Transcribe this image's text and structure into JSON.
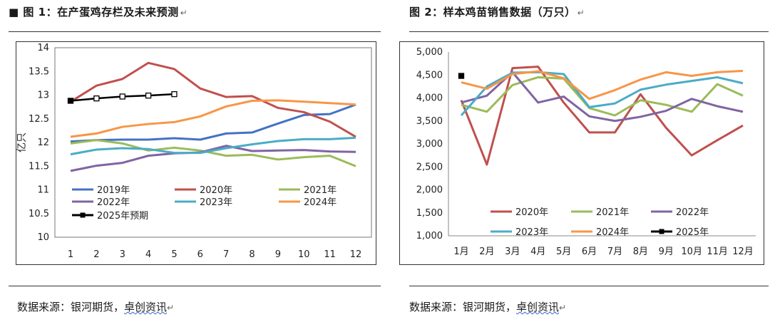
{
  "left_caption": {
    "bullet": "■",
    "text": "图 1：在产蛋鸡存栏及未来预测",
    "mark": "↵"
  },
  "right_caption": {
    "text": "图 2：样本鸡苗销售数据（万只）",
    "mark": "↵"
  },
  "left_source": {
    "prefix": "数据来源：银河期货，",
    "org": "卓创资讯",
    "mark": "↵"
  },
  "right_source": {
    "prefix": "数据来源：银河期货，",
    "org": "卓创资讯",
    "mark": "↵"
  },
  "chart_data": [
    {
      "type": "line",
      "title": "",
      "ylabel": "亿只",
      "xlabel": "",
      "ylim": [
        10,
        14
      ],
      "yticks": [
        10,
        10.5,
        11,
        11.5,
        12,
        12.5,
        13,
        13.5,
        14
      ],
      "categories": [
        "1",
        "2",
        "3",
        "4",
        "5",
        "6",
        "7",
        "8",
        "9",
        "10",
        "11",
        "12"
      ],
      "series": [
        {
          "name": "2019年",
          "color": "#4472c4",
          "values": [
            12.02,
            12.05,
            12.06,
            12.06,
            12.09,
            12.06,
            12.19,
            12.21,
            12.4,
            12.58,
            12.6,
            12.8
          ]
        },
        {
          "name": "2020年",
          "color": "#c0504d",
          "values": [
            12.86,
            13.2,
            13.34,
            13.68,
            13.55,
            13.14,
            12.96,
            12.98,
            12.73,
            12.64,
            12.44,
            12.12
          ]
        },
        {
          "name": "2021年",
          "color": "#9bbb59",
          "values": [
            11.98,
            12.05,
            11.98,
            11.83,
            11.89,
            11.83,
            11.72,
            11.74,
            11.64,
            11.69,
            11.72,
            11.5
          ]
        },
        {
          "name": "2022年",
          "color": "#8064a2",
          "values": [
            11.4,
            11.51,
            11.57,
            11.72,
            11.77,
            11.79,
            11.93,
            11.82,
            11.83,
            11.84,
            11.81,
            11.8
          ]
        },
        {
          "name": "2023年",
          "color": "#4bacc6",
          "values": [
            11.75,
            11.85,
            11.88,
            11.86,
            11.78,
            11.78,
            11.88,
            11.96,
            12.03,
            12.07,
            12.07,
            12.1
          ]
        },
        {
          "name": "2024年",
          "color": "#f79646",
          "values": [
            12.12,
            12.19,
            12.33,
            12.39,
            12.43,
            12.55,
            12.76,
            12.88,
            12.89,
            12.86,
            12.83,
            12.8
          ]
        },
        {
          "name": "2025年预期",
          "color": "#000000",
          "marker": "square",
          "values": [
            12.88,
            12.93,
            12.97,
            12.99,
            13.02,
            null,
            null,
            null,
            null,
            null,
            null,
            null
          ]
        }
      ],
      "legend": "lower-center"
    },
    {
      "type": "line",
      "title": "",
      "ylabel": "",
      "xlabel": "",
      "ylim": [
        1000,
        5000
      ],
      "yticks": [
        "1,000",
        "1,500",
        "2,000",
        "2,500",
        "3,000",
        "3,500",
        "4,000",
        "4,500",
        "5,000"
      ],
      "categories": [
        "1月",
        "2月",
        "3月",
        "4月",
        "5月",
        "6月",
        "7月",
        "8月",
        "9月",
        "10月",
        "11月",
        "12月"
      ],
      "series": [
        {
          "name": "2020年",
          "color": "#c0504d",
          "values": [
            3950,
            2550,
            4650,
            4680,
            3900,
            3250,
            3250,
            4080,
            3350,
            2750,
            3080,
            3400
          ]
        },
        {
          "name": "2021年",
          "color": "#9bbb59",
          "values": [
            3850,
            3700,
            4280,
            4450,
            4420,
            3780,
            3620,
            3950,
            3850,
            3700,
            4300,
            4050
          ]
        },
        {
          "name": "2022年",
          "color": "#8064a2",
          "values": [
            3900,
            4050,
            4560,
            3900,
            4030,
            3600,
            3500,
            3590,
            3720,
            3980,
            3820,
            3700
          ]
        },
        {
          "name": "2023年",
          "color": "#4bacc6",
          "values": [
            3620,
            4250,
            4550,
            4560,
            4520,
            3800,
            3880,
            4180,
            4290,
            4370,
            4450,
            4320
          ]
        },
        {
          "name": "2024年",
          "color": "#f79646",
          "values": [
            4340,
            4200,
            4520,
            4580,
            4430,
            3980,
            4170,
            4400,
            4560,
            4480,
            4560,
            4590
          ]
        },
        {
          "name": "2025年",
          "color": "#000000",
          "marker": "square",
          "values": [
            4480,
            null,
            null,
            null,
            null,
            null,
            null,
            null,
            null,
            null,
            null,
            null
          ]
        }
      ],
      "legend": "lower-center"
    }
  ]
}
